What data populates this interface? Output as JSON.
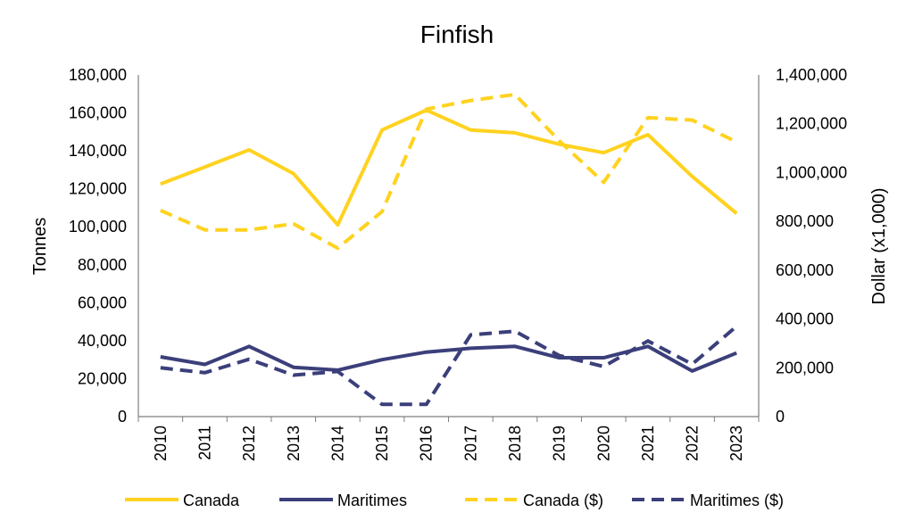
{
  "chart_data": {
    "type": "line",
    "title": "Finfish",
    "xlabel": "",
    "ylabel": "Tonnes",
    "y2label": "Dollar (x1,000)",
    "categories": [
      "2010",
      "2011",
      "2012",
      "2013",
      "2014",
      "2015",
      "2016",
      "2017",
      "2018",
      "2019",
      "2020",
      "2021",
      "2022",
      "2023"
    ],
    "ylim": [
      0,
      180000
    ],
    "y2lim": [
      0,
      1400000
    ],
    "yticks": [
      "0",
      "20,000",
      "40,000",
      "60,000",
      "80,000",
      "100,000",
      "120,000",
      "140,000",
      "160,000",
      "180,000"
    ],
    "y2ticks": [
      "0",
      "200,000",
      "400,000",
      "600,000",
      "800,000",
      "1,000,000",
      "1,200,000",
      "1,400,000"
    ],
    "grid": false,
    "legend_position": "bottom",
    "series": [
      {
        "name": "Canada",
        "axis": "left",
        "style": "solid",
        "color": "#FFD21F",
        "values": [
          122500,
          131500,
          140500,
          128000,
          101000,
          151000,
          161500,
          151000,
          149500,
          143500,
          139000,
          148500,
          126500,
          107000
        ]
      },
      {
        "name": "Maritimes",
        "axis": "left",
        "style": "solid",
        "color": "#3B3F7A",
        "values": [
          31500,
          27500,
          37000,
          26000,
          24500,
          30000,
          34000,
          36000,
          37000,
          31000,
          31000,
          37000,
          24000,
          33500
        ]
      },
      {
        "name": "Canada ($)",
        "axis": "right",
        "style": "dashed",
        "color": "#FFD21F",
        "values": [
          845000,
          765000,
          765000,
          790000,
          690000,
          840000,
          1260000,
          1295000,
          1320000,
          1130000,
          960000,
          1225000,
          1215000,
          1125000
        ]
      },
      {
        "name": "Maritimes ($)",
        "axis": "right",
        "style": "dashed",
        "color": "#3B3F7A",
        "values": [
          200000,
          180000,
          235000,
          170000,
          185000,
          50000,
          50000,
          335000,
          350000,
          250000,
          205000,
          310000,
          215000,
          370000
        ]
      }
    ]
  }
}
